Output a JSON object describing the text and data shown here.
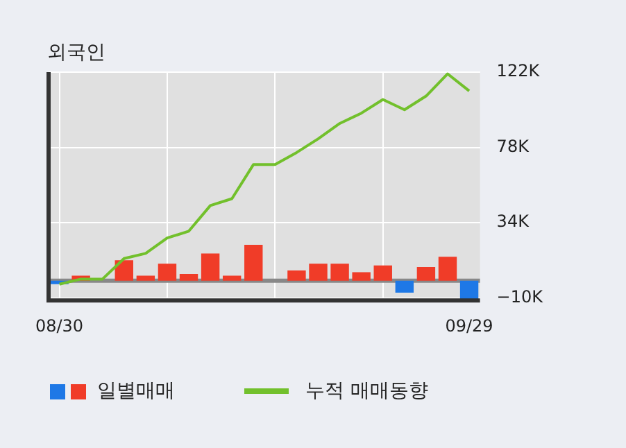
{
  "chart_data": {
    "type": "bar",
    "title": "외국인",
    "categories": [
      "08/30",
      null,
      null,
      null,
      null,
      null,
      null,
      null,
      null,
      null,
      null,
      null,
      null,
      null,
      null,
      null,
      null,
      null,
      null,
      "09/29"
    ],
    "series": [
      {
        "name": "일별매매",
        "colors": [
          "#1e78e6",
          "#f03c28",
          "#f03c28",
          "#f03c28",
          "#f03c28",
          "#f03c28",
          "#f03c28",
          "#f03c28",
          "#f03c28",
          "#f03c28",
          "#f03c28",
          "#f03c28",
          "#f03c28",
          "#f03c28",
          "#f03c28",
          "#f03c28",
          "#1e78e6",
          "#f03c28",
          "#f03c28",
          "#1e78e6"
        ],
        "values": [
          -2000,
          3000,
          0,
          12000,
          3000,
          10000,
          4000,
          16000,
          3000,
          21000,
          0,
          6000,
          10000,
          10000,
          5000,
          9000,
          -7000,
          8000,
          14000,
          -11000
        ]
      },
      {
        "type": "line",
        "name": "누적 매매동향",
        "color": "#72c02c",
        "values": [
          -2000,
          1000,
          1000,
          13000,
          16000,
          25000,
          29000,
          44000,
          48000,
          68000,
          68000,
          75000,
          83000,
          92000,
          98000,
          106000,
          100000,
          108000,
          121000,
          111000
        ]
      }
    ],
    "ylim": [
      -11500,
      122000
    ],
    "yticks": [
      {
        "value": -10000,
        "label": "−10K"
      },
      {
        "value": 34000,
        "label": "34K"
      },
      {
        "value": 78000,
        "label": "78K"
      },
      {
        "value": 122000,
        "label": "122K"
      }
    ],
    "ref_lines": [
      {
        "axis": "y",
        "value": 0,
        "color": "#888888"
      }
    ],
    "grid": true,
    "legend": "bottom"
  }
}
